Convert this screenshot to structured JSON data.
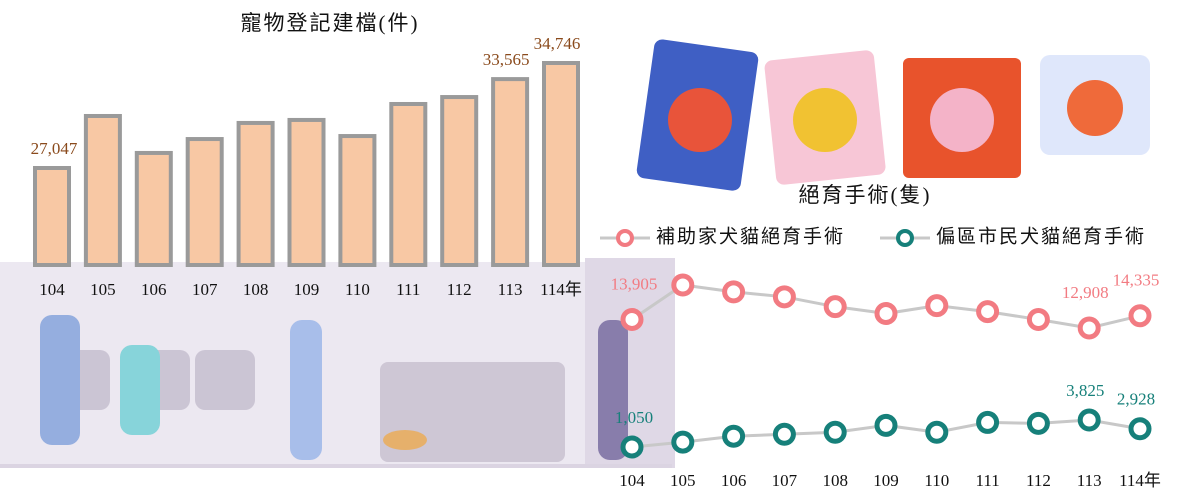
{
  "chart_data": [
    {
      "type": "bar",
      "title": "寵物登記建檔(件)",
      "categories": [
        "104",
        "105",
        "106",
        "107",
        "108",
        "109",
        "110",
        "111",
        "112",
        "113",
        "114年"
      ],
      "values": [
        27047,
        30860,
        28150,
        29170,
        30350,
        30570,
        29390,
        31740,
        32250,
        33565,
        34746
      ],
      "value_labels": [
        "27,047",
        null,
        null,
        null,
        null,
        null,
        null,
        null,
        null,
        "33,565",
        "34,746"
      ],
      "color": "#f8c8a4"
    },
    {
      "type": "line",
      "title": "絕育手術(隻)",
      "categories": [
        "104",
        "105",
        "106",
        "107",
        "108",
        "109",
        "110",
        "111",
        "112",
        "113",
        "114年"
      ],
      "series": [
        {
          "name": "補助家犬貓絕育手術",
          "color": "#f27b82",
          "values": [
            13905,
            17930,
            17125,
            16550,
            15400,
            14600,
            15515,
            14825,
            13900,
            12908,
            14335
          ],
          "value_labels": [
            "13,905",
            null,
            null,
            null,
            null,
            null,
            null,
            null,
            null,
            "12,908",
            "14,335"
          ]
        },
        {
          "name": "偏區市民犬貓絕育手術",
          "color": "#16807a",
          "values": [
            1050,
            1555,
            2160,
            2360,
            2565,
            3270,
            2565,
            3575,
            3475,
            3825,
            2928
          ],
          "value_labels": [
            "1,050",
            null,
            null,
            null,
            null,
            null,
            null,
            null,
            null,
            "3,825",
            "2,928"
          ]
        }
      ]
    }
  ]
}
